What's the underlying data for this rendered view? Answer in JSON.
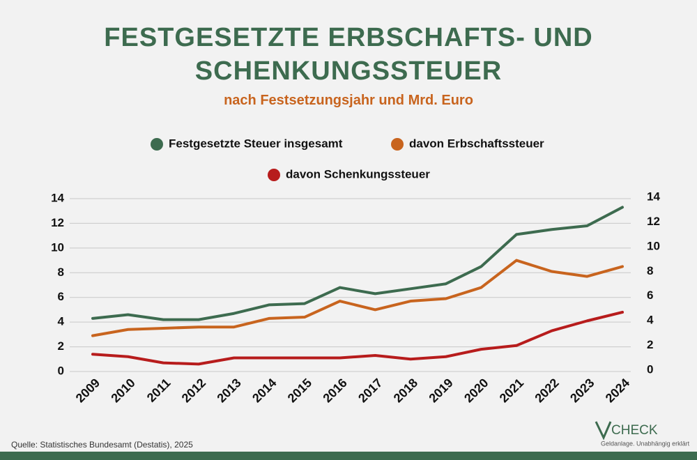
{
  "chart_data": {
    "type": "line",
    "title": "FESTGESETZTE ERBSCHAFTS- UND SCHENKUNGSSTEUER",
    "subtitle": "nach Festsetzungsjahr und Mrd. Euro",
    "categories": [
      "2009",
      "2010",
      "2011",
      "2012",
      "2013",
      "2014",
      "2015",
      "2016",
      "2017",
      "2018",
      "2019",
      "2020",
      "2021",
      "2022",
      "2023",
      "2024"
    ],
    "series": [
      {
        "name": "Festgesetzte Steuer insgesamt",
        "color": "#3d6b4f",
        "values": [
          4.3,
          4.6,
          4.2,
          4.2,
          4.7,
          5.4,
          5.5,
          6.8,
          6.3,
          6.7,
          7.1,
          8.5,
          11.1,
          11.5,
          11.8,
          13.3
        ]
      },
      {
        "name": "davon Erbschaftssteuer",
        "color": "#c8641e",
        "values": [
          2.9,
          3.4,
          3.5,
          3.6,
          3.6,
          4.3,
          4.4,
          5.7,
          5.0,
          5.7,
          5.9,
          6.8,
          9.0,
          8.1,
          7.7,
          8.5
        ]
      },
      {
        "name": "davon Schenkungssteuer",
        "color": "#b71c1c",
        "values": [
          1.4,
          1.2,
          0.7,
          0.6,
          1.1,
          1.1,
          1.1,
          1.1,
          1.3,
          1.0,
          1.2,
          1.8,
          2.1,
          3.3,
          4.1,
          4.8
        ]
      }
    ],
    "ylim": [
      0,
      14
    ],
    "yticks": [
      0,
      2,
      4,
      6,
      8,
      10,
      12,
      14
    ],
    "y2lim": [
      0,
      14
    ],
    "y2ticks": [
      0,
      2,
      4,
      6,
      8,
      10,
      12,
      14
    ],
    "grid": true,
    "source": "Quelle: Statistisches Bundesamt (Destatis), 2025",
    "logo": {
      "name": "CHECK",
      "tagline": "Geldanlage. Unabhängig erklärt"
    }
  }
}
